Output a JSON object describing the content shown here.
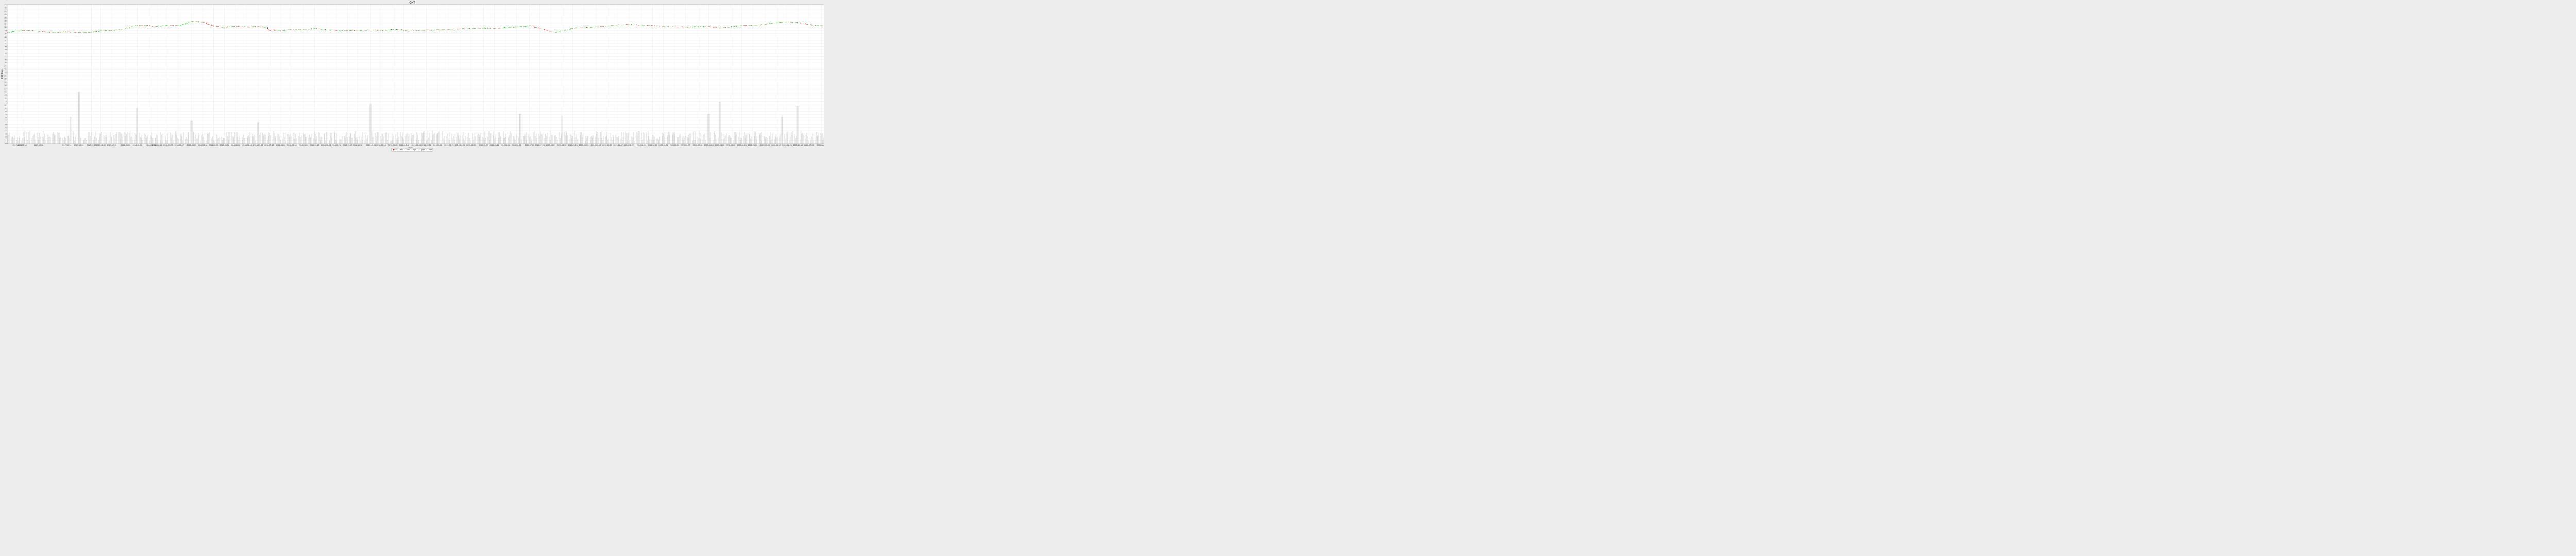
{
  "chart_data": {
    "type": "candlestick",
    "title": "CHT",
    "xlabel": "Time",
    "ylabel": "EOD Data",
    "ylim": [
      0,
      43
    ],
    "yticks": [
      0,
      1,
      2,
      3,
      4,
      5,
      6,
      7,
      8,
      9,
      10,
      11,
      12,
      13,
      14,
      15,
      16,
      17,
      18,
      19,
      20,
      21,
      22,
      23,
      24,
      25,
      26,
      27,
      28,
      29,
      30,
      31,
      32,
      33,
      34,
      35,
      36,
      37,
      38,
      39,
      40,
      41,
      42,
      43
    ],
    "xrange": [
      "2017-07-25",
      "2020-08-15"
    ],
    "xticks": [
      "2017-08-08",
      "2017-08-14",
      "2017-09-06",
      "2017-10-14",
      "2017-10-31",
      "2017-11-17",
      "2017-11-30",
      "2017-12-15",
      "2018-01-03",
      "2018-01-19",
      "2018-02-07",
      "2018-02-15",
      "2018-03-02",
      "2018-03-17",
      "2018-04-03",
      "2018-04-18",
      "2018-05-03",
      "2018-05-18",
      "2018-06-02",
      "2018-06-18",
      "2018-07-03",
      "2018-07-18",
      "2018-08-03",
      "2018-08-18",
      "2018-09-03",
      "2018-09-18",
      "2018-10-04",
      "2018-10-18",
      "2018-11-02",
      "2018-11-16",
      "2018-12-04",
      "2018-12-18",
      "2019-01-03",
      "2019-01-18",
      "2019-02-04",
      "2019-02-18",
      "2019-03-05",
      "2019-03-21",
      "2019-04-05",
      "2019-04-20",
      "2019-05-07",
      "2019-05-22",
      "2019-06-06",
      "2019-06-21",
      "2019-07-09",
      "2019-07-23",
      "2019-08-07",
      "2019-08-22",
      "2019-09-06",
      "2019-09-21",
      "2019-10-08",
      "2019-10-23",
      "2019-11-07",
      "2019-11-22",
      "2019-12-09",
      "2019-12-24",
      "2020-01-08",
      "2020-01-23",
      "2020-02-07",
      "2020-02-24",
      "2020-03-10",
      "2020-03-25",
      "2020-04-09",
      "2020-04-24",
      "2020-05-09",
      "2020-05-26",
      "2020-06-10",
      "2020-06-25",
      "2020-07-10",
      "2020-07-25",
      "2020-08-11"
    ],
    "price_path": [
      [
        "2017-07-25",
        34.4
      ],
      [
        "2017-08-08",
        34.8
      ],
      [
        "2017-08-20",
        35.0
      ],
      [
        "2017-09-06",
        34.7
      ],
      [
        "2017-09-25",
        34.3
      ],
      [
        "2017-10-14",
        34.5
      ],
      [
        "2017-10-31",
        34.3
      ],
      [
        "2017-11-17",
        34.4
      ],
      [
        "2017-12-01",
        34.9
      ],
      [
        "2017-12-15",
        35.0
      ],
      [
        "2018-01-03",
        35.6
      ],
      [
        "2018-01-19",
        36.6
      ],
      [
        "2018-02-07",
        36.4
      ],
      [
        "2018-02-15",
        36.2
      ],
      [
        "2018-03-02",
        36.7
      ],
      [
        "2018-03-17",
        36.5
      ],
      [
        "2018-04-03",
        37.8
      ],
      [
        "2018-04-18",
        37.6
      ],
      [
        "2018-05-03",
        36.3
      ],
      [
        "2018-05-18",
        36.0
      ],
      [
        "2018-06-02",
        36.3
      ],
      [
        "2018-06-18",
        36.1
      ],
      [
        "2018-07-03",
        36.2
      ],
      [
        "2018-07-14",
        36.0
      ],
      [
        "2018-07-18",
        35.1
      ],
      [
        "2018-08-03",
        35.0
      ],
      [
        "2018-08-18",
        35.2
      ],
      [
        "2018-09-03",
        35.3
      ],
      [
        "2018-09-18",
        35.6
      ],
      [
        "2018-10-04",
        35.2
      ],
      [
        "2018-10-18",
        35.0
      ],
      [
        "2018-11-02",
        35.0
      ],
      [
        "2018-11-16",
        34.9
      ],
      [
        "2018-12-04",
        35.2
      ],
      [
        "2018-12-18",
        35.0
      ],
      [
        "2019-01-03",
        35.3
      ],
      [
        "2019-01-18",
        35.1
      ],
      [
        "2019-02-04",
        35.0
      ],
      [
        "2019-02-18",
        35.1
      ],
      [
        "2019-03-05",
        35.2
      ],
      [
        "2019-03-21",
        35.3
      ],
      [
        "2019-04-05",
        35.5
      ],
      [
        "2019-04-20",
        35.6
      ],
      [
        "2019-05-07",
        35.7
      ],
      [
        "2019-05-22",
        35.6
      ],
      [
        "2019-06-06",
        35.8
      ],
      [
        "2019-06-21",
        36.1
      ],
      [
        "2019-07-09",
        36.4
      ],
      [
        "2019-07-23",
        35.6
      ],
      [
        "2019-08-07",
        34.6
      ],
      [
        "2019-08-15",
        34.4
      ],
      [
        "2019-08-22",
        34.8
      ],
      [
        "2019-09-06",
        35.6
      ],
      [
        "2019-09-21",
        35.9
      ],
      [
        "2019-10-08",
        36.1
      ],
      [
        "2019-10-23",
        36.4
      ],
      [
        "2019-11-07",
        36.7
      ],
      [
        "2019-11-22",
        36.8
      ],
      [
        "2019-12-09",
        36.7
      ],
      [
        "2019-12-24",
        36.5
      ],
      [
        "2020-01-08",
        36.3
      ],
      [
        "2020-01-23",
        36.1
      ],
      [
        "2020-02-07",
        36.0
      ],
      [
        "2020-02-24",
        36.2
      ],
      [
        "2020-03-10",
        36.2
      ],
      [
        "2020-03-25",
        35.7
      ],
      [
        "2020-04-09",
        36.1
      ],
      [
        "2020-04-24",
        36.5
      ],
      [
        "2020-05-09",
        36.6
      ],
      [
        "2020-05-26",
        36.9
      ],
      [
        "2020-06-10",
        37.4
      ],
      [
        "2020-06-25",
        37.7
      ],
      [
        "2020-07-10",
        37.4
      ],
      [
        "2020-07-25",
        36.7
      ],
      [
        "2020-08-15",
        36.4
      ]
    ],
    "volume_scale": 0.55,
    "volume_spikes": [
      [
        "2017-10-31",
        16
      ],
      [
        "2017-10-20",
        8.2
      ],
      [
        "2018-01-19",
        11
      ],
      [
        "2018-04-03",
        7
      ],
      [
        "2018-07-03",
        6.6
      ],
      [
        "2018-12-04",
        12.2
      ],
      [
        "2019-06-26",
        9.2
      ],
      [
        "2019-08-23",
        8.6
      ],
      [
        "2020-03-10",
        9.2
      ],
      [
        "2020-03-25",
        12.8
      ],
      [
        "2020-07-10",
        11.6
      ],
      [
        "2020-06-18",
        8.2
      ]
    ],
    "legend": {
      "position": "bottom-center",
      "items": [
        {
          "label": "EOD Data",
          "color": "#cc2222"
        },
        {
          "label": "Low",
          "color": "#aaaaaa"
        },
        {
          "label": "High",
          "color": "#aaaaaa"
        },
        {
          "label": "Open",
          "color": "#aaaaaa"
        },
        {
          "label": "Close",
          "color": "#aaaaaa"
        }
      ]
    },
    "colors": {
      "up": "#22ee22",
      "down": "#cc2222",
      "volume": "#b4b4b4",
      "grid": "#e8e8e8",
      "background": "#ffffff",
      "frame": "#ededed"
    },
    "grid": true
  }
}
